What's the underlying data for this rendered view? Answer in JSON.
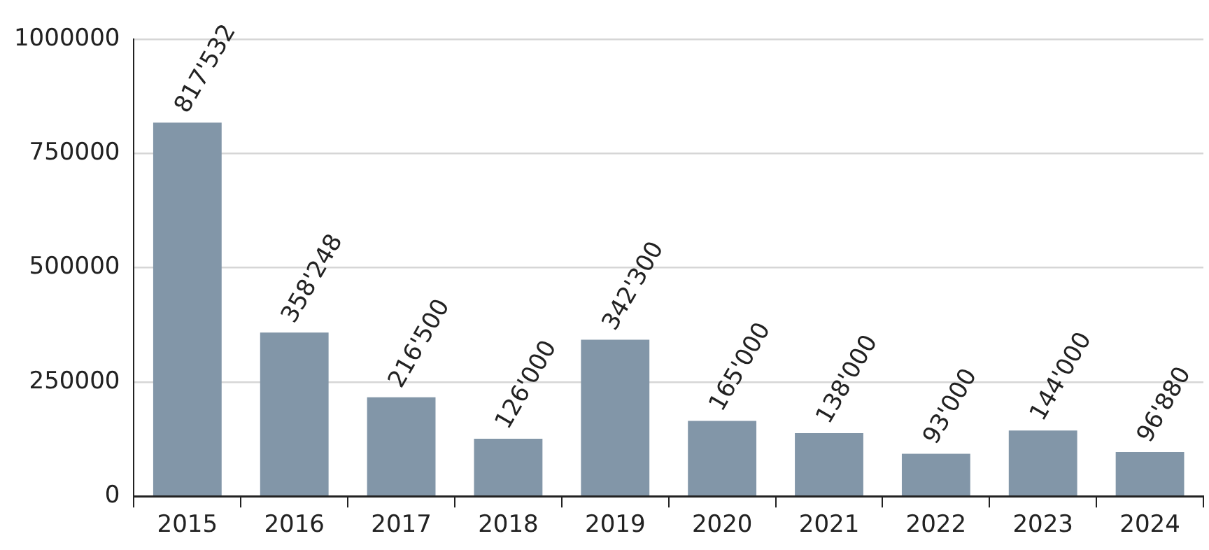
{
  "chart_data": {
    "type": "bar",
    "categories": [
      "2015",
      "2016",
      "2017",
      "2018",
      "2019",
      "2020",
      "2021",
      "2022",
      "2023",
      "2024"
    ],
    "values": [
      817532,
      358248,
      216500,
      126000,
      342300,
      165000,
      138000,
      93000,
      144000,
      96880
    ],
    "value_labels": [
      "817'532",
      "358'248",
      "216'500",
      "126'000",
      "342'300",
      "165'000",
      "138'000",
      "93'000",
      "144'000",
      "96'880"
    ],
    "color": "#8296a8",
    "ylim": [
      0,
      1000000
    ],
    "yticks": [
      0,
      250000,
      500000,
      750000,
      1000000
    ],
    "grid": "y",
    "legend": false
  }
}
